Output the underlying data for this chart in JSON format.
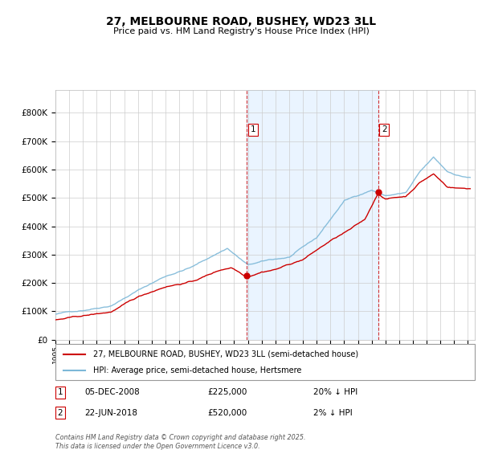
{
  "title_line1": "27, MELBOURNE ROAD, BUSHEY, WD23 3LL",
  "title_line2": "Price paid vs. HM Land Registry's House Price Index (HPI)",
  "background_color": "#ffffff",
  "plot_bg_color": "#ffffff",
  "grid_color": "#cccccc",
  "hpi_color": "#7db8d8",
  "price_color": "#cc0000",
  "shade_color": "#ddeeff",
  "dashed_line_color": "#cc0000",
  "transaction1_date_num": 2008.92,
  "transaction1_label": "1",
  "transaction1_price": 225000,
  "transaction2_date_num": 2018.47,
  "transaction2_label": "2",
  "transaction2_price": 520000,
  "legend_label_price": "27, MELBOURNE ROAD, BUSHEY, WD23 3LL (semi-detached house)",
  "legend_label_hpi": "HPI: Average price, semi-detached house, Hertsmere",
  "note1_label": "1",
  "note1_date": "05-DEC-2008",
  "note1_price": "£225,000",
  "note1_pct": "20% ↓ HPI",
  "note2_label": "2",
  "note2_date": "22-JUN-2018",
  "note2_price": "£520,000",
  "note2_pct": "2% ↓ HPI",
  "footer": "Contains HM Land Registry data © Crown copyright and database right 2025.\nThis data is licensed under the Open Government Licence v3.0.",
  "ylim_max": 880000,
  "yticks": [
    0,
    100000,
    200000,
    300000,
    400000,
    500000,
    600000,
    700000,
    800000
  ],
  "ytick_labels": [
    "£0",
    "£100K",
    "£200K",
    "£300K",
    "£400K",
    "£500K",
    "£600K",
    "£700K",
    "£800K"
  ],
  "xmin": 1995,
  "xmax": 2025.5
}
